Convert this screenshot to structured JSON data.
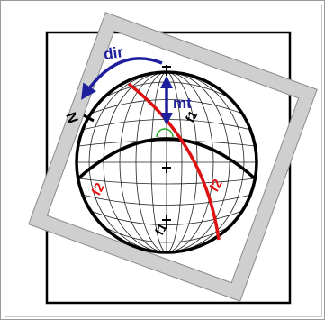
{
  "labels": {
    "dir": "dir",
    "north": "N",
    "mt": "mt",
    "f1_upper": "f1",
    "f1_lower": "f1",
    "f2_left": "f2",
    "f2_right": "f2"
  },
  "colors": {
    "outline": "#000000",
    "grid": "#222222",
    "overlay_border": "#cfcfcf",
    "blue_arrow": "#1f1f9e",
    "red_plane": "#dd1111",
    "green_marker": "#22aa22",
    "frame_border": "#9a9a9a"
  },
  "icons": {
    "dir_arrow": "curved-arrow-icon",
    "mt_arrow": "double-headed-arrow-icon"
  }
}
